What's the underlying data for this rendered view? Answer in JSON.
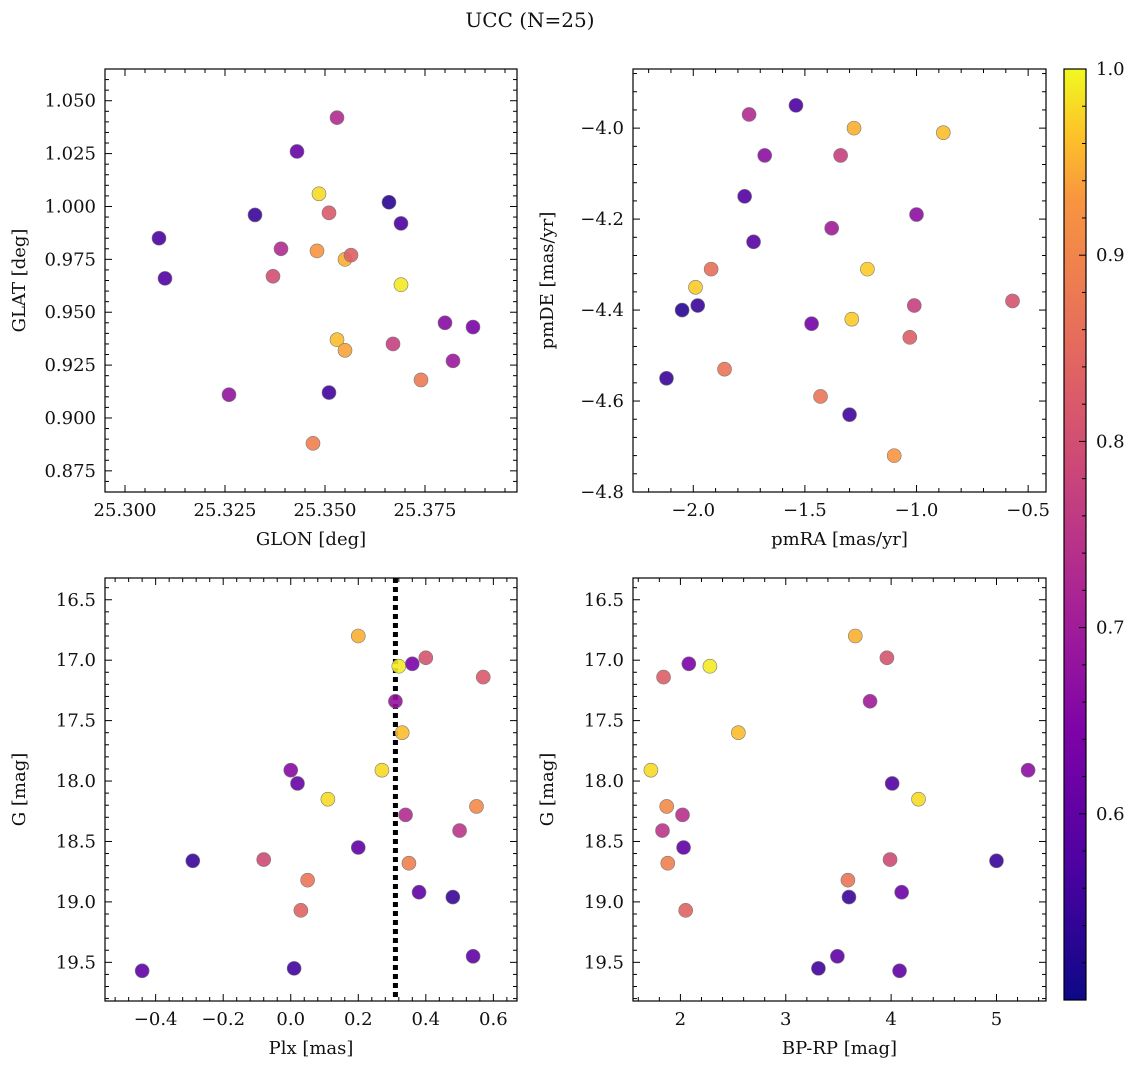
{
  "title": "UCC (N=25)",
  "colorbar": {
    "min": 0.5,
    "max": 1.0,
    "colormap": "plasma",
    "ticks": [
      0.6,
      0.7,
      0.8,
      0.9,
      1.0
    ],
    "tick_labels": [
      "0.6",
      "0.7",
      "0.8",
      "0.9",
      "1.0"
    ]
  },
  "chart_data": [
    {
      "type": "scatter",
      "xlabel": "GLON [deg]",
      "ylabel": "GLAT [deg]",
      "xlim": [
        25.295,
        25.398
      ],
      "ylim": [
        0.865,
        1.065
      ],
      "xticks": [
        25.3,
        25.325,
        25.35,
        25.375
      ],
      "xtick_labels": [
        "25.300",
        "25.325",
        "25.350",
        "25.375"
      ],
      "yticks": [
        0.875,
        0.9,
        0.925,
        0.95,
        0.975,
        1.0,
        1.025,
        1.05
      ],
      "ytick_labels": [
        "0.875",
        "0.900",
        "0.925",
        "0.950",
        "0.975",
        "1.000",
        "1.025",
        "1.050"
      ],
      "points": [
        {
          "x": 25.3085,
          "y": 0.985,
          "c": 0.57
        },
        {
          "x": 25.31,
          "y": 0.966,
          "c": 0.58
        },
        {
          "x": 25.326,
          "y": 0.911,
          "c": 0.68
        },
        {
          "x": 25.3325,
          "y": 0.996,
          "c": 0.55
        },
        {
          "x": 25.337,
          "y": 0.967,
          "c": 0.8
        },
        {
          "x": 25.339,
          "y": 0.98,
          "c": 0.73
        },
        {
          "x": 25.343,
          "y": 1.026,
          "c": 0.61
        },
        {
          "x": 25.347,
          "y": 0.888,
          "c": 0.89
        },
        {
          "x": 25.348,
          "y": 0.979,
          "c": 0.93
        },
        {
          "x": 25.3485,
          "y": 1.006,
          "c": 0.98
        },
        {
          "x": 25.351,
          "y": 0.912,
          "c": 0.56
        },
        {
          "x": 25.351,
          "y": 0.997,
          "c": 0.82
        },
        {
          "x": 25.353,
          "y": 0.937,
          "c": 0.96
        },
        {
          "x": 25.353,
          "y": 1.042,
          "c": 0.73
        },
        {
          "x": 25.355,
          "y": 0.975,
          "c": 0.95
        },
        {
          "x": 25.355,
          "y": 0.932,
          "c": 0.94
        },
        {
          "x": 25.3565,
          "y": 0.977,
          "c": 0.83
        },
        {
          "x": 25.366,
          "y": 1.002,
          "c": 0.53
        },
        {
          "x": 25.367,
          "y": 0.935,
          "c": 0.77
        },
        {
          "x": 25.369,
          "y": 0.963,
          "c": 0.99
        },
        {
          "x": 25.369,
          "y": 0.992,
          "c": 0.57
        },
        {
          "x": 25.374,
          "y": 0.918,
          "c": 0.88
        },
        {
          "x": 25.38,
          "y": 0.945,
          "c": 0.66
        },
        {
          "x": 25.382,
          "y": 0.927,
          "c": 0.69
        },
        {
          "x": 25.387,
          "y": 0.943,
          "c": 0.64
        }
      ]
    },
    {
      "type": "scatter",
      "xlabel": "pmRA [mas/yr]",
      "ylabel": "pmDE [mas/yr]",
      "xlim": [
        -2.27,
        -0.42
      ],
      "ylim": [
        -4.8,
        -3.87
      ],
      "xticks": [
        -2.0,
        -1.5,
        -1.0,
        -0.5
      ],
      "xtick_labels": [
        "−2.0",
        "−1.5",
        "−1.0",
        "−0.5"
      ],
      "yticks": [
        -4.8,
        -4.6,
        -4.4,
        -4.2,
        -4.0
      ],
      "ytick_labels": [
        "−4.8",
        "−4.6",
        "−4.4",
        "−4.2",
        "−4.0"
      ],
      "points": [
        {
          "x": -2.12,
          "y": -4.55,
          "c": 0.55
        },
        {
          "x": -2.05,
          "y": -4.4,
          "c": 0.53
        },
        {
          "x": -1.99,
          "y": -4.35,
          "c": 0.97
        },
        {
          "x": -1.98,
          "y": -4.39,
          "c": 0.55
        },
        {
          "x": -1.92,
          "y": -4.31,
          "c": 0.86
        },
        {
          "x": -1.86,
          "y": -4.53,
          "c": 0.87
        },
        {
          "x": -1.77,
          "y": -4.15,
          "c": 0.58
        },
        {
          "x": -1.75,
          "y": -3.97,
          "c": 0.73
        },
        {
          "x": -1.73,
          "y": -4.25,
          "c": 0.59
        },
        {
          "x": -1.68,
          "y": -4.06,
          "c": 0.67
        },
        {
          "x": -1.54,
          "y": -3.95,
          "c": 0.57
        },
        {
          "x": -1.47,
          "y": -4.43,
          "c": 0.63
        },
        {
          "x": -1.43,
          "y": -4.59,
          "c": 0.87
        },
        {
          "x": -1.38,
          "y": -4.22,
          "c": 0.7
        },
        {
          "x": -1.34,
          "y": -4.06,
          "c": 0.77
        },
        {
          "x": -1.3,
          "y": -4.63,
          "c": 0.56
        },
        {
          "x": -1.29,
          "y": -4.42,
          "c": 0.97
        },
        {
          "x": -1.28,
          "y": -4.0,
          "c": 0.95
        },
        {
          "x": -1.22,
          "y": -4.31,
          "c": 0.97
        },
        {
          "x": -1.1,
          "y": -4.72,
          "c": 0.93
        },
        {
          "x": -1.03,
          "y": -4.46,
          "c": 0.83
        },
        {
          "x": -1.01,
          "y": -4.39,
          "c": 0.77
        },
        {
          "x": -1.0,
          "y": -4.19,
          "c": 0.67
        },
        {
          "x": -0.88,
          "y": -4.01,
          "c": 0.96
        },
        {
          "x": -0.57,
          "y": -4.38,
          "c": 0.81
        }
      ]
    },
    {
      "type": "scatter",
      "xlabel": "Plx [mas]",
      "ylabel": "G [mag]",
      "xlim": [
        -0.55,
        0.67
      ],
      "ylim": [
        19.82,
        16.32
      ],
      "vline": 0.31,
      "xticks": [
        -0.4,
        -0.2,
        0.0,
        0.2,
        0.4,
        0.6
      ],
      "xtick_labels": [
        "−0.4",
        "−0.2",
        "0.0",
        "0.2",
        "0.4",
        "0.6"
      ],
      "yticks": [
        16.5,
        17.0,
        17.5,
        18.0,
        18.5,
        19.0,
        19.5
      ],
      "ytick_labels": [
        "16.5",
        "17.0",
        "17.5",
        "18.0",
        "18.5",
        "19.0",
        "19.5"
      ],
      "points": [
        {
          "x": -0.44,
          "y": 19.57,
          "c": 0.6
        },
        {
          "x": -0.29,
          "y": 18.66,
          "c": 0.55
        },
        {
          "x": -0.08,
          "y": 18.65,
          "c": 0.79
        },
        {
          "x": 0.0,
          "y": 17.91,
          "c": 0.66
        },
        {
          "x": 0.01,
          "y": 19.55,
          "c": 0.56
        },
        {
          "x": 0.02,
          "y": 18.02,
          "c": 0.61
        },
        {
          "x": 0.03,
          "y": 19.07,
          "c": 0.84
        },
        {
          "x": 0.05,
          "y": 18.82,
          "c": 0.87
        },
        {
          "x": 0.11,
          "y": 18.15,
          "c": 0.98
        },
        {
          "x": 0.2,
          "y": 16.8,
          "c": 0.95
        },
        {
          "x": 0.2,
          "y": 18.55,
          "c": 0.6
        },
        {
          "x": 0.27,
          "y": 17.91,
          "c": 0.98
        },
        {
          "x": 0.31,
          "y": 17.34,
          "c": 0.68
        },
        {
          "x": 0.32,
          "y": 17.05,
          "c": 0.99
        },
        {
          "x": 0.33,
          "y": 17.6,
          "c": 0.96
        },
        {
          "x": 0.34,
          "y": 18.28,
          "c": 0.73
        },
        {
          "x": 0.35,
          "y": 18.68,
          "c": 0.89
        },
        {
          "x": 0.36,
          "y": 17.03,
          "c": 0.64
        },
        {
          "x": 0.38,
          "y": 18.92,
          "c": 0.6
        },
        {
          "x": 0.4,
          "y": 16.98,
          "c": 0.81
        },
        {
          "x": 0.48,
          "y": 18.96,
          "c": 0.55
        },
        {
          "x": 0.5,
          "y": 18.41,
          "c": 0.75
        },
        {
          "x": 0.54,
          "y": 19.45,
          "c": 0.6
        },
        {
          "x": 0.55,
          "y": 18.21,
          "c": 0.91
        },
        {
          "x": 0.57,
          "y": 17.14,
          "c": 0.82
        }
      ]
    },
    {
      "type": "scatter",
      "xlabel": "BP-RP [mag]",
      "ylabel": "G [mag]",
      "xlim": [
        1.55,
        5.47
      ],
      "ylim": [
        19.82,
        16.32
      ],
      "xticks": [
        2,
        3,
        4,
        5
      ],
      "xtick_labels": [
        "2",
        "3",
        "4",
        "5"
      ],
      "yticks": [
        16.5,
        17.0,
        17.5,
        18.0,
        18.5,
        19.0,
        19.5
      ],
      "ytick_labels": [
        "16.5",
        "17.0",
        "17.5",
        "18.0",
        "18.5",
        "19.0",
        "19.5"
      ],
      "points": [
        {
          "x": 1.72,
          "y": 17.91,
          "c": 0.98
        },
        {
          "x": 1.83,
          "y": 18.41,
          "c": 0.75
        },
        {
          "x": 1.84,
          "y": 17.14,
          "c": 0.83
        },
        {
          "x": 1.87,
          "y": 18.21,
          "c": 0.91
        },
        {
          "x": 1.88,
          "y": 18.68,
          "c": 0.89
        },
        {
          "x": 2.02,
          "y": 18.28,
          "c": 0.74
        },
        {
          "x": 2.03,
          "y": 18.55,
          "c": 0.6
        },
        {
          "x": 2.05,
          "y": 19.07,
          "c": 0.84
        },
        {
          "x": 2.08,
          "y": 17.03,
          "c": 0.64
        },
        {
          "x": 2.28,
          "y": 17.05,
          "c": 0.99
        },
        {
          "x": 2.55,
          "y": 17.6,
          "c": 0.96
        },
        {
          "x": 3.31,
          "y": 19.55,
          "c": 0.56
        },
        {
          "x": 3.49,
          "y": 19.45,
          "c": 0.6
        },
        {
          "x": 3.59,
          "y": 18.82,
          "c": 0.87
        },
        {
          "x": 3.6,
          "y": 18.96,
          "c": 0.55
        },
        {
          "x": 3.66,
          "y": 16.8,
          "c": 0.95
        },
        {
          "x": 3.8,
          "y": 17.34,
          "c": 0.7
        },
        {
          "x": 3.96,
          "y": 16.98,
          "c": 0.81
        },
        {
          "x": 3.99,
          "y": 18.65,
          "c": 0.79
        },
        {
          "x": 4.01,
          "y": 18.02,
          "c": 0.58
        },
        {
          "x": 4.08,
          "y": 19.57,
          "c": 0.6
        },
        {
          "x": 4.1,
          "y": 18.92,
          "c": 0.62
        },
        {
          "x": 4.26,
          "y": 18.15,
          "c": 0.98
        },
        {
          "x": 5.0,
          "y": 18.66,
          "c": 0.55
        },
        {
          "x": 5.3,
          "y": 17.91,
          "c": 0.67
        }
      ]
    }
  ]
}
